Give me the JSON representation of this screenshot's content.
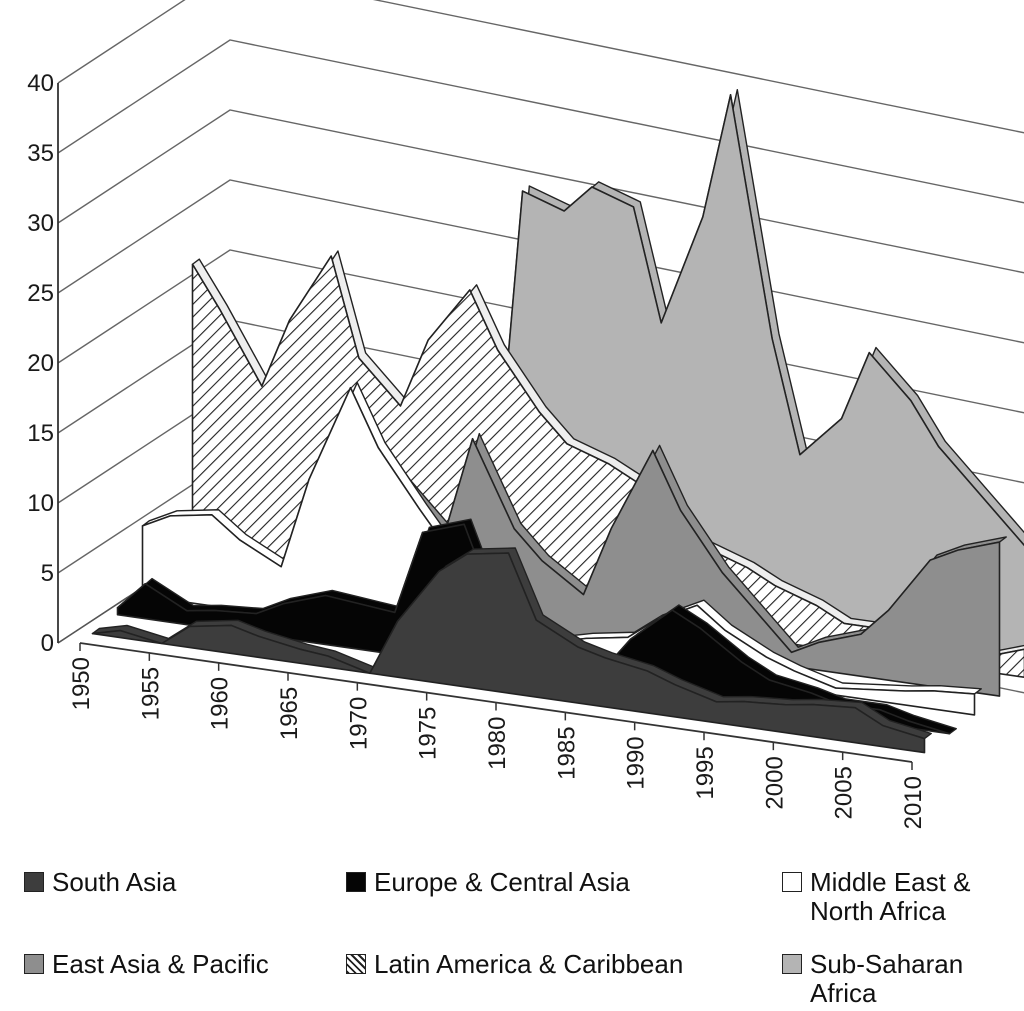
{
  "chart_data": {
    "type": "area",
    "style": "3d-stacked-depth",
    "x": [
      1950,
      1952,
      1955,
      1957,
      1960,
      1962,
      1965,
      1967,
      1970,
      1972,
      1975,
      1977,
      1980,
      1982,
      1985,
      1987,
      1990,
      1992,
      1995,
      1997,
      2000,
      2002,
      2005,
      2007,
      2010
    ],
    "x_tick_labels": [
      "1950",
      "1955",
      "1960",
      "1965",
      "1970",
      "1975",
      "1980",
      "1985",
      "1990",
      "1995",
      "2000",
      "2005",
      "2010"
    ],
    "y_tick_labels": [
      "0",
      "5",
      "10",
      "15",
      "20",
      "25",
      "30",
      "35",
      "40"
    ],
    "ylim": [
      0,
      40
    ],
    "xlabel": "",
    "ylabel": "",
    "title": "",
    "grid": true,
    "legend_position": "bottom",
    "series": [
      {
        "name": "South Asia",
        "color": "#3d3d3d",
        "pattern": "solid",
        "values": [
          0,
          0.5,
          0,
          1.5,
          2,
          1.5,
          1,
          0.8,
          0,
          4,
          8,
          9.5,
          10,
          5.5,
          4,
          3.5,
          3,
          2.3,
          1.5,
          1.8,
          2,
          2.3,
          2.5,
          1.5,
          1
        ]
      },
      {
        "name": "Europe & Central Asia",
        "color": "#050505",
        "pattern": "solid",
        "values": [
          0.5,
          2.5,
          1,
          1.3,
          1.5,
          2.5,
          3.5,
          3.3,
          3,
          9,
          10,
          5,
          2,
          1.5,
          1,
          3.5,
          6,
          5,
          3,
          2,
          1.5,
          1,
          1,
          0.5,
          0
        ]
      },
      {
        "name": "Middle East & North Africa",
        "color": "#ffffff",
        "pattern": "solid",
        "values": [
          5,
          6,
          6.5,
          5,
          3.5,
          10,
          17,
          13,
          9,
          6.5,
          4,
          2.5,
          1,
          1.5,
          2,
          3.5,
          5,
          3.5,
          2,
          1.3,
          0.5,
          0.7,
          1,
          1.3,
          1.5
        ]
      },
      {
        "name": "East Asia & Pacific",
        "color": "#8e8e8e",
        "pattern": "solid",
        "values": [
          1,
          0.8,
          0.5,
          0.8,
          1,
          11,
          11.5,
          9,
          6,
          13,
          7,
          5,
          3,
          8,
          14,
          10,
          6,
          4,
          1,
          2,
          3,
          5,
          9,
          10,
          11
        ]
      },
      {
        "name": "Latin America & Caribbean",
        "color": "#ffffff",
        "pattern": "hatch",
        "values": [
          21,
          18,
          13,
          18,
          23,
          16,
          13,
          18,
          22,
          18,
          14,
          12,
          11,
          10,
          8,
          6,
          5,
          4,
          3,
          2,
          2,
          2,
          1,
          1,
          2
        ]
      },
      {
        "name": "Sub-Saharan Africa",
        "color": "#b4b4b4",
        "pattern": "solid",
        "values": [
          0,
          0,
          0,
          0,
          0,
          0,
          0,
          0,
          5,
          28,
          27,
          29,
          28,
          20,
          28,
          37,
          20,
          12,
          15,
          20,
          17,
          14,
          11,
          9,
          6
        ]
      }
    ]
  },
  "legend": {
    "items": [
      {
        "label": "South Asia",
        "color": "#3d3d3d",
        "pattern": "solid"
      },
      {
        "label": "Europe & Central Asia",
        "color": "#050505",
        "pattern": "solid"
      },
      {
        "label": "Middle East &\nNorth Africa",
        "color": "#ffffff",
        "pattern": "solid"
      },
      {
        "label": "East Asia & Pacific",
        "color": "#8e8e8e",
        "pattern": "solid"
      },
      {
        "label": "Latin America & Caribbean",
        "color": "#ffffff",
        "pattern": "hatch"
      },
      {
        "label": "Sub-Saharan\nAfrica",
        "color": "#b4b4b4",
        "pattern": "solid"
      }
    ]
  }
}
